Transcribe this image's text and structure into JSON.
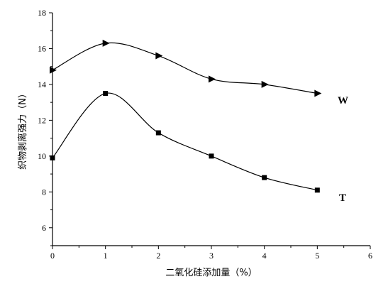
{
  "chart_data": {
    "type": "line",
    "xlabel": "二氧化硅添加量（%）",
    "ylabel": "织物剥离强力（N）",
    "xlim": [
      0,
      6
    ],
    "ylim": [
      5,
      18
    ],
    "xticks": [
      "0",
      "1",
      "2",
      "3",
      "4",
      "5",
      "6"
    ],
    "yticks": [
      "6",
      "8",
      "10",
      "12",
      "14",
      "16",
      "18"
    ],
    "grid": false,
    "series": [
      {
        "name": "W",
        "marker": "triangle-right",
        "x": [
          0,
          1,
          2,
          3,
          4,
          5
        ],
        "values": [
          14.8,
          16.3,
          15.6,
          14.3,
          14.0,
          13.5
        ]
      },
      {
        "name": "T",
        "marker": "square",
        "x": [
          0,
          1,
          2,
          3,
          4,
          5
        ],
        "values": [
          9.9,
          13.5,
          11.3,
          10.0,
          8.8,
          8.1
        ]
      }
    ]
  }
}
